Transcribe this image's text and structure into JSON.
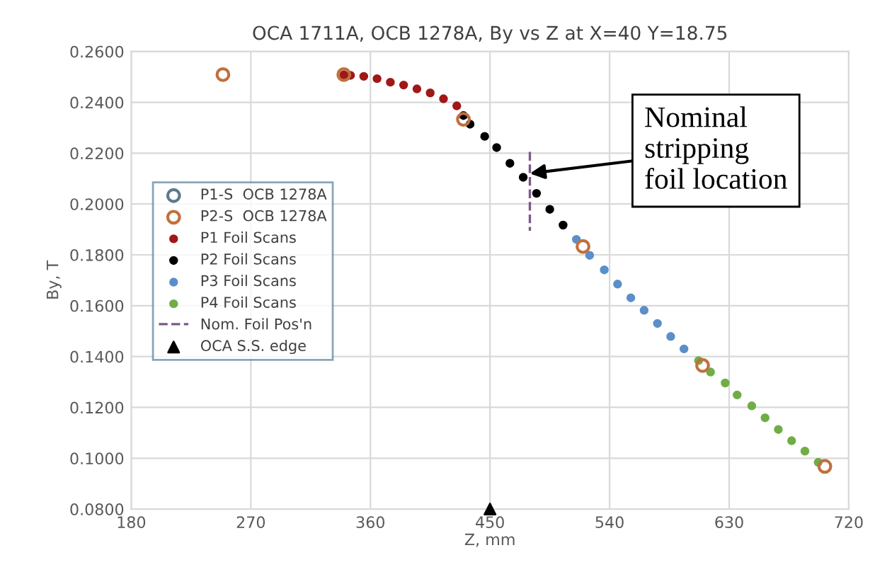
{
  "chart_data": {
    "type": "scatter",
    "title": "OCA 1711A, OCB 1278A, By vs Z at X=40 Y=18.75",
    "xlabel": "Z, mm",
    "ylabel": "By, T",
    "xlim": [
      180,
      720
    ],
    "xticks": [
      180,
      270,
      360,
      450,
      540,
      630,
      720
    ],
    "ylim": [
      0.08,
      0.26
    ],
    "yticks": [
      {
        "value": 0.08,
        "label": "0.0800"
      },
      {
        "value": 0.1,
        "label": "0.1000"
      },
      {
        "value": 0.12,
        "label": "0.1200"
      },
      {
        "value": 0.14,
        "label": "0.1400"
      },
      {
        "value": 0.16,
        "label": "0.1600"
      },
      {
        "value": 0.18,
        "label": "0.1800"
      },
      {
        "value": 0.2,
        "label": "0.2000"
      },
      {
        "value": 0.22,
        "label": "0.2200"
      },
      {
        "value": 0.24,
        "label": "0.2400"
      },
      {
        "value": 0.26,
        "label": "0.2600"
      }
    ],
    "grid": true,
    "legend": "left",
    "series": [
      {
        "name": "P1-S  OCB 1278A",
        "color": "#5a7a8c",
        "marker": "circle"
      },
      {
        "name": "P2-S  OCB 1278A",
        "color": "#c0703e",
        "marker": "circle",
        "x": [
          249,
          340,
          430,
          520,
          610,
          702
        ],
        "values": [
          0.2509,
          0.2509,
          0.2333,
          0.1833,
          0.1365,
          0.0968
        ]
      },
      {
        "name": "P1 Foil Scans",
        "color": "#a01818",
        "x": [
          340,
          345,
          355,
          365,
          375,
          385,
          395,
          405,
          415,
          425
        ],
        "values": [
          0.2508,
          0.2506,
          0.2502,
          0.2493,
          0.2479,
          0.2468,
          0.2453,
          0.2437,
          0.2414,
          0.2386
        ]
      },
      {
        "name": "P2 Foil Scans",
        "color": "#000000",
        "x": [
          430,
          435,
          446,
          455,
          465,
          475,
          485,
          495,
          505
        ],
        "values": [
          0.2348,
          0.2314,
          0.2266,
          0.2222,
          0.216,
          0.2105,
          0.2042,
          0.1979,
          0.1917
        ]
      },
      {
        "name": "P3 Foil Scans",
        "color": "#5b8fc9",
        "x": [
          515,
          525,
          536,
          546,
          556,
          566,
          576,
          586,
          596
        ],
        "values": [
          0.1861,
          0.1798,
          0.1741,
          0.1685,
          0.1631,
          0.1582,
          0.153,
          0.1479,
          0.143
        ]
      },
      {
        "name": "P4 Foil Scans",
        "color": "#70ad47",
        "x": [
          607,
          616,
          627,
          636,
          647,
          657,
          667,
          677,
          687,
          697
        ],
        "values": [
          0.1384,
          0.1339,
          0.1296,
          0.1249,
          0.1206,
          0.1159,
          0.1113,
          0.1069,
          0.1028,
          0.0984
        ]
      },
      {
        "name": "Nom. Foil Pos'n",
        "type": "line",
        "color": "#7b5a8c",
        "line_style": "dashed",
        "x": [
          480,
          480
        ],
        "values": [
          0.2205,
          0.1895
        ]
      },
      {
        "name": "OCA S.S. edge",
        "color": "#000000",
        "marker": "triangle",
        "x": [
          450
        ],
        "values": [
          0.08
        ]
      }
    ],
    "annotations": [
      {
        "text": "Nominal\nstripping\nfoil location",
        "x": 480,
        "y": 0.212
      }
    ]
  }
}
